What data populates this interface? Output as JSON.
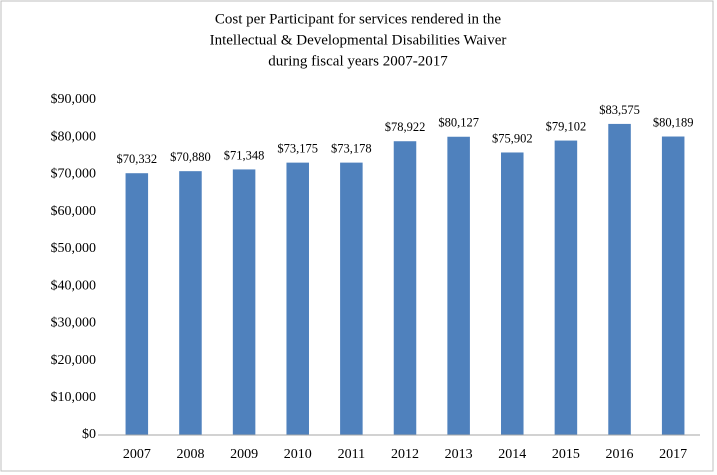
{
  "chart_data": {
    "type": "bar",
    "title": [
      "Cost per Participant for services rendered in the",
      "Intellectual & Developmental Disabilities Waiver",
      "during fiscal years 2007-2017"
    ],
    "categories": [
      "2007",
      "2008",
      "2009",
      "2010",
      "2011",
      "2012",
      "2013",
      "2014",
      "2015",
      "2016",
      "2017"
    ],
    "values": [
      70332,
      70880,
      71348,
      73175,
      73178,
      78922,
      80127,
      75902,
      79102,
      83575,
      80189
    ],
    "value_labels": [
      "$70,332",
      "$70,880",
      "$71,348",
      "$73,175",
      "$73,178",
      "$78,922",
      "$80,127",
      "$75,902",
      "$79,102",
      "$83,575",
      "$80,189"
    ],
    "color": "#4f81bd",
    "ylim": [
      0,
      90000
    ],
    "yticks": [
      {
        "value": 0,
        "label": "$0"
      },
      {
        "value": 10000,
        "label": "$10,000"
      },
      {
        "value": 20000,
        "label": "$20,000"
      },
      {
        "value": 30000,
        "label": "$30,000"
      },
      {
        "value": 40000,
        "label": "$40,000"
      },
      {
        "value": 50000,
        "label": "$50,000"
      },
      {
        "value": 60000,
        "label": "$60,000"
      },
      {
        "value": 70000,
        "label": "$70,000"
      },
      {
        "value": 80000,
        "label": "$80,000"
      },
      {
        "value": 90000,
        "label": "$90,000"
      }
    ],
    "grid": false
  }
}
